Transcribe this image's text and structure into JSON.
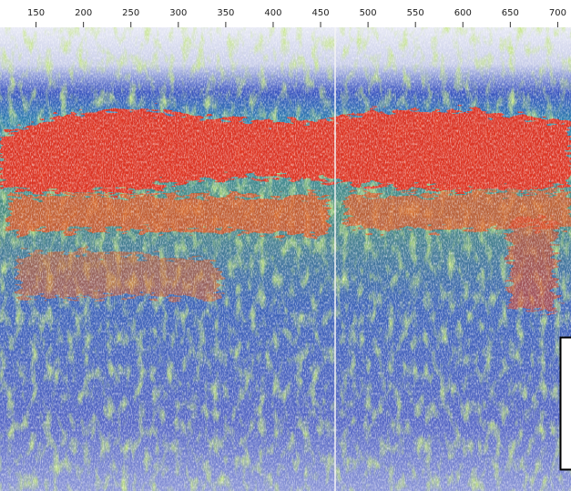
{
  "chart_data": {
    "type": "image",
    "xlim": [
      112,
      714
    ],
    "xticks": [
      150,
      200,
      250,
      300,
      350,
      400,
      450,
      500,
      550,
      600,
      650,
      700
    ]
  }
}
